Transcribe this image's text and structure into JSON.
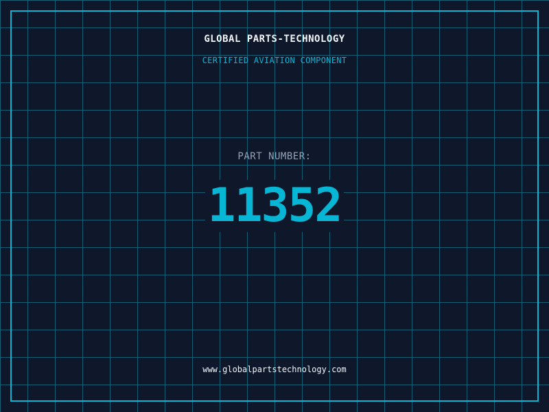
{
  "header": {
    "company": "GLOBAL PARTS-TECHNOLOGY",
    "subtitle": "CERTIFIED AVIATION COMPONENT"
  },
  "part": {
    "label": "PART NUMBER:",
    "number": "11352"
  },
  "footer": {
    "url": "www.globalpartstechnology.com"
  },
  "colors": {
    "background": "#0f172a",
    "accent": "#06b6d4",
    "grid": "#155e75"
  }
}
